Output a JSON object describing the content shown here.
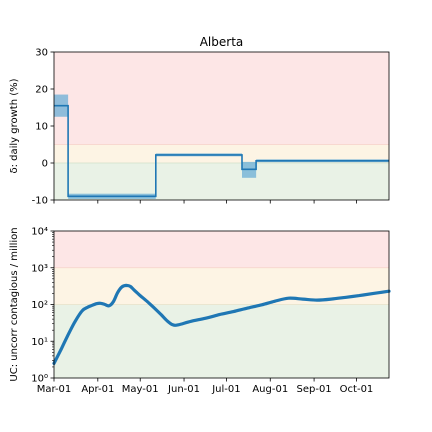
{
  "chart_data": [
    {
      "type": "line",
      "title": "Alberta",
      "xlabel": "",
      "ylabel": "δ: daily growth (%)",
      "ylim": [
        -10,
        30
      ],
      "yticks": [
        -10,
        0,
        10,
        20,
        30
      ],
      "x_date_range": [
        "2020-03-01",
        "2020-10-24"
      ],
      "x_ticks_dates": [
        "2020-03-01",
        "2020-04-01",
        "2020-05-01",
        "2020-06-01",
        "2020-07-01",
        "2020-08-01",
        "2020-09-01",
        "2020-10-01"
      ],
      "x_tick_labels_shown": false,
      "zones": [
        {
          "from": -10,
          "to": 0,
          "color": "#e9f2e6"
        },
        {
          "from": 0,
          "to": 5,
          "color": "#fdf4e4"
        },
        {
          "from": 5,
          "to": 30,
          "color": "#fde6e6"
        }
      ],
      "series": [
        {
          "color": "#1f77b4",
          "band_color": "#6aaed6",
          "steps": [
            {
              "start": "2020-03-01",
              "end": "2020-03-11",
              "value": 15.5,
              "low": 12.5,
              "high": 18.5
            },
            {
              "start": "2020-03-11",
              "end": "2020-05-12",
              "value": -9.0,
              "low": -9.7,
              "high": -8.3
            },
            {
              "start": "2020-05-12",
              "end": "2020-07-12",
              "value": 2.2,
              "low": 1.8,
              "high": 2.6
            },
            {
              "start": "2020-07-12",
              "end": "2020-07-22",
              "value": -1.7,
              "low": -4.0,
              "high": 0.3
            },
            {
              "start": "2020-07-22",
              "end": "2020-10-24",
              "value": 0.6,
              "low": 0.2,
              "high": 1.0
            }
          ]
        }
      ]
    },
    {
      "type": "line",
      "title": "",
      "xlabel": "",
      "ylabel": "UC: uncorr contagious / million",
      "y_scale": "log",
      "ylim": [
        1,
        10000
      ],
      "ytick_labels": [
        "10⁰",
        "10¹",
        "10²",
        "10³",
        "10⁴"
      ],
      "x_tick_labels": [
        "Mar-01",
        "Apr-01",
        "May-01",
        "Jun-01",
        "Jul-01",
        "Aug-01",
        "Sep-01",
        "Oct-01"
      ],
      "x_ticks_dates": [
        "2020-03-01",
        "2020-04-01",
        "2020-05-01",
        "2020-06-01",
        "2020-07-01",
        "2020-08-01",
        "2020-09-01",
        "2020-10-01"
      ],
      "x_date_range": [
        "2020-03-01",
        "2020-10-24"
      ],
      "zones": [
        {
          "from": 1,
          "to": 100,
          "color": "#e9f2e6"
        },
        {
          "from": 100,
          "to": 1000,
          "color": "#fdf4e4"
        },
        {
          "from": 1000,
          "to": 10000,
          "color": "#fde6e6"
        }
      ],
      "series": [
        {
          "color": "#1f77b4",
          "x": [
            "2020-03-01",
            "2020-03-06",
            "2020-03-11",
            "2020-03-16",
            "2020-03-21",
            "2020-03-25",
            "2020-03-28",
            "2020-03-31",
            "2020-04-03",
            "2020-04-06",
            "2020-04-09",
            "2020-04-12",
            "2020-04-15",
            "2020-04-18",
            "2020-04-21",
            "2020-04-24",
            "2020-04-27",
            "2020-05-01",
            "2020-05-06",
            "2020-05-11",
            "2020-05-16",
            "2020-05-20",
            "2020-05-24",
            "2020-05-28",
            "2020-06-06",
            "2020-06-16",
            "2020-06-26",
            "2020-07-06",
            "2020-07-16",
            "2020-07-26",
            "2020-08-04",
            "2020-08-14",
            "2020-08-24",
            "2020-09-03",
            "2020-09-13",
            "2020-09-23",
            "2020-10-03",
            "2020-10-13",
            "2020-10-24"
          ],
          "values": [
            2.5,
            6,
            15,
            35,
            68,
            85,
            95,
            105,
            108,
            100,
            92,
            120,
            210,
            300,
            330,
            310,
            240,
            175,
            120,
            80,
            52,
            36,
            28,
            28,
            35,
            42,
            53,
            64,
            80,
            98,
            122,
            148,
            140,
            132,
            140,
            156,
            175,
            200,
            230
          ]
        }
      ]
    }
  ]
}
